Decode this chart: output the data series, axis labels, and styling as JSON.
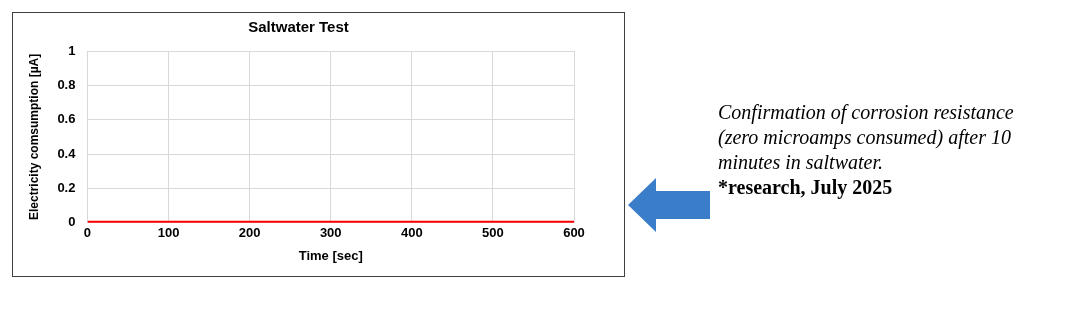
{
  "chart_data": {
    "type": "line",
    "title": "Saltwater Test",
    "xlabel": "Time [sec]",
    "ylabel": "Electricity comsumption [µA]",
    "x": [
      0,
      600
    ],
    "series": [
      {
        "color": "#ff0000",
        "values": [
          0,
          0
        ]
      }
    ],
    "xlim": [
      0,
      600
    ],
    "xticks": [
      0,
      100,
      200,
      300,
      400,
      500,
      600
    ],
    "ylim": [
      0,
      1
    ],
    "yticks": [
      0,
      0.2,
      0.4,
      0.6,
      0.8,
      1
    ],
    "grid": true,
    "legend": false,
    "marker": "none",
    "line_style": "solid",
    "annotations": [
      "Confirmation of corrosion resistance (zero microamps consumed) after 10 minutes in saltwater.",
      "*research, July 2025"
    ]
  }
}
